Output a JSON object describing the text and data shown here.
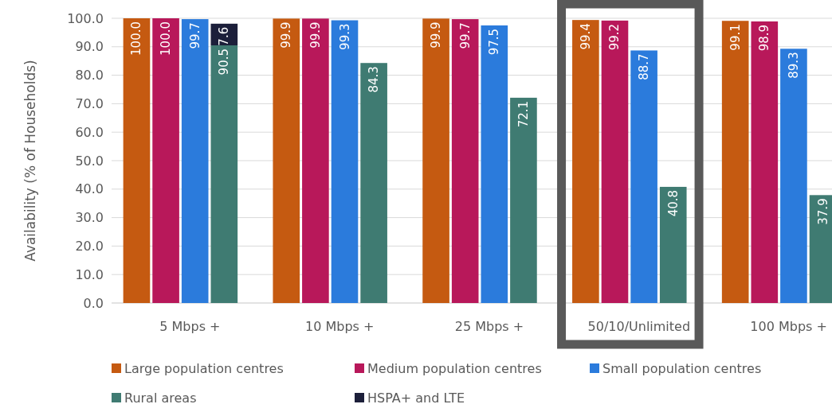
{
  "chart_data": {
    "type": "bar",
    "ylabel": "Availability (% of Households)",
    "categories": [
      "5 Mbps +",
      "10 Mbps +",
      "25 Mbps +",
      "50/10/Unlimited",
      "100 Mbps +"
    ],
    "series": [
      {
        "name": "Large population centres",
        "color": "#c55a11",
        "values": [
          100,
          99.9,
          99.9,
          99.4,
          99.1
        ],
        "value_labels": [
          "100.0",
          "99.9",
          "99.9",
          "99.4",
          "99.1"
        ]
      },
      {
        "name": "Medium population centres",
        "color": "#b8185a",
        "values": [
          100,
          99.9,
          99.7,
          99.2,
          98.9
        ],
        "value_labels": [
          "100.0",
          "99.9",
          "99.7",
          "99.2",
          "98.9"
        ]
      },
      {
        "name": "Small population centres",
        "color": "#2b7bdc",
        "values": [
          99.7,
          99.3,
          97.5,
          88.7,
          89.3
        ],
        "value_labels": [
          "99.7",
          "99.3",
          "97.5",
          "88.7",
          "89.3"
        ]
      },
      {
        "name": "Rural areas",
        "color": "#3f7b72",
        "values": [
          90.5,
          84.3,
          72.1,
          40.8,
          37.9
        ],
        "value_labels": [
          "90.5",
          "84.3",
          "72.1",
          "40.8",
          "37.9"
        ]
      },
      {
        "name": "HSPA+ and LTE",
        "color": "#1c1f3a",
        "values": [
          7.6,
          null,
          null,
          null,
          null
        ],
        "base": [
          90.5,
          null,
          null,
          null,
          null
        ],
        "value_labels": [
          "7.6",
          null,
          null,
          null,
          null
        ]
      }
    ],
    "ylim": [
      0,
      100
    ],
    "yticks": [
      {
        "value": 0,
        "label": "0.0"
      },
      {
        "value": 10,
        "label": "10.0"
      },
      {
        "value": 20,
        "label": "20.0"
      },
      {
        "value": 30,
        "label": "30.0"
      },
      {
        "value": 40,
        "label": "40.0"
      },
      {
        "value": 50,
        "label": "50.0"
      },
      {
        "value": 60,
        "label": "60.0"
      },
      {
        "value": 70,
        "label": "70.0"
      },
      {
        "value": 80,
        "label": "80.0"
      },
      {
        "value": 90,
        "label": "90.0"
      },
      {
        "value": 100,
        "label": "100.0"
      }
    ],
    "grid": "y",
    "legend": "bottom"
  }
}
